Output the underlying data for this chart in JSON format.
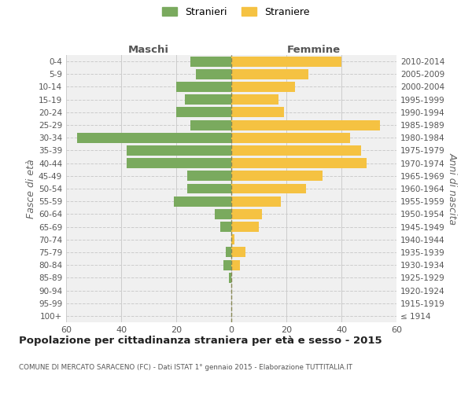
{
  "age_groups": [
    "100+",
    "95-99",
    "90-94",
    "85-89",
    "80-84",
    "75-79",
    "70-74",
    "65-69",
    "60-64",
    "55-59",
    "50-54",
    "45-49",
    "40-44",
    "35-39",
    "30-34",
    "25-29",
    "20-24",
    "15-19",
    "10-14",
    "5-9",
    "0-4"
  ],
  "birth_years": [
    "≤ 1914",
    "1915-1919",
    "1920-1924",
    "1925-1929",
    "1930-1934",
    "1935-1939",
    "1940-1944",
    "1945-1949",
    "1950-1954",
    "1955-1959",
    "1960-1964",
    "1965-1969",
    "1970-1974",
    "1975-1979",
    "1980-1984",
    "1985-1989",
    "1990-1994",
    "1995-1999",
    "2000-2004",
    "2005-2009",
    "2010-2014"
  ],
  "maschi": [
    0,
    0,
    0,
    1,
    3,
    2,
    0,
    4,
    6,
    21,
    16,
    16,
    38,
    38,
    56,
    15,
    20,
    17,
    20,
    13,
    15
  ],
  "femmine": [
    0,
    0,
    0,
    0,
    3,
    5,
    1,
    10,
    11,
    18,
    27,
    33,
    49,
    47,
    43,
    54,
    19,
    17,
    23,
    28,
    40
  ],
  "male_color": "#7aaa5e",
  "female_color": "#f5c242",
  "center_line_color": "#888855",
  "grid_color": "#cccccc",
  "title": "Popolazione per cittadinanza straniera per età e sesso - 2015",
  "subtitle": "COMUNE DI MERCATO SARACENO (FC) - Dati ISTAT 1° gennaio 2015 - Elaborazione TUTTITALIA.IT",
  "ylabel_left": "Fasce di età",
  "ylabel_right": "Anni di nascita",
  "legend_male": "Stranieri",
  "legend_female": "Straniere",
  "xlim": 60,
  "bg_color": "#ffffff",
  "plot_bg_color": "#f0f0f0"
}
